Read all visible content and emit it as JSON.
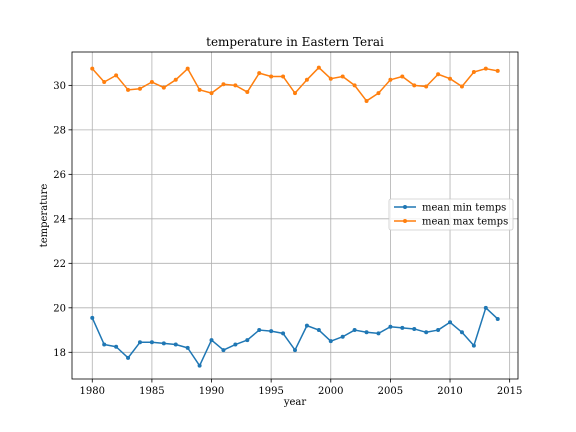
{
  "chart_data": {
    "type": "line",
    "title": "temperature in Eastern Terai",
    "xlabel": "year",
    "ylabel": "temperature",
    "xlim": [
      1978.3,
      2015.7
    ],
    "ylim": [
      16.8,
      31.5
    ],
    "xticks": [
      1980,
      1985,
      1990,
      1995,
      2000,
      2005,
      2010,
      2015
    ],
    "yticks": [
      18,
      20,
      22,
      24,
      26,
      28,
      30
    ],
    "grid": true,
    "legend_position": "center-right",
    "x": [
      1980,
      1981,
      1982,
      1983,
      1984,
      1985,
      1986,
      1987,
      1988,
      1989,
      1990,
      1991,
      1992,
      1993,
      1994,
      1995,
      1996,
      1997,
      1998,
      1999,
      2000,
      2001,
      2002,
      2003,
      2004,
      2005,
      2006,
      2007,
      2008,
      2009,
      2010,
      2011,
      2012,
      2013,
      2014
    ],
    "series": [
      {
        "name": "mean min temps",
        "color": "#1f77b4",
        "values": [
          19.55,
          18.35,
          18.25,
          17.75,
          18.45,
          18.45,
          18.4,
          18.35,
          18.2,
          17.4,
          18.55,
          18.1,
          18.35,
          18.55,
          19.0,
          18.95,
          18.85,
          18.1,
          19.2,
          19.0,
          18.5,
          18.7,
          19.0,
          18.9,
          18.85,
          19.15,
          19.1,
          19.05,
          18.9,
          19.0,
          19.35,
          18.9,
          18.3,
          20.0,
          19.5
        ]
      },
      {
        "name": "mean max temps",
        "color": "#ff7f0e",
        "values": [
          30.75,
          30.15,
          30.45,
          29.8,
          29.85,
          30.15,
          29.9,
          30.25,
          30.75,
          29.8,
          29.65,
          30.05,
          30.0,
          29.7,
          30.55,
          30.4,
          30.4,
          29.65,
          30.25,
          30.8,
          30.3,
          30.4,
          30.0,
          29.3,
          29.65,
          30.25,
          30.4,
          30.0,
          29.95,
          30.5,
          30.3,
          29.95,
          30.6,
          30.75,
          30.65
        ]
      }
    ]
  }
}
